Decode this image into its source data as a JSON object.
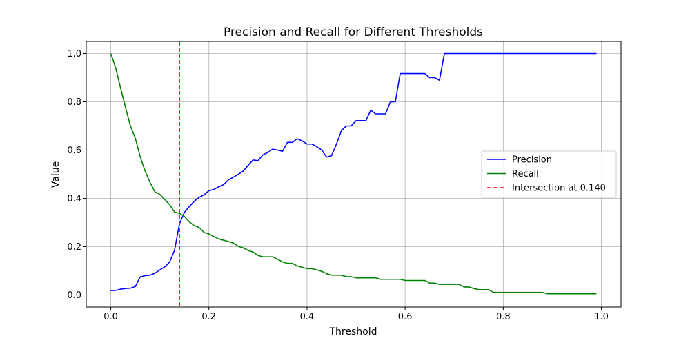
{
  "chart_data": {
    "type": "line",
    "title": "Precision and Recall for Different Thresholds",
    "xlabel": "Threshold",
    "ylabel": "Value",
    "xlim": [
      -0.05,
      1.04
    ],
    "ylim": [
      -0.05,
      1.05
    ],
    "xticks": [
      0.0,
      0.2,
      0.4,
      0.6,
      0.8,
      1.0
    ],
    "xtick_labels": [
      "0.0",
      "0.2",
      "0.4",
      "0.6",
      "0.8",
      "1.0"
    ],
    "yticks": [
      0.0,
      0.2,
      0.4,
      0.6,
      0.8,
      1.0
    ],
    "ytick_labels": [
      "0.0",
      "0.2",
      "0.4",
      "0.6",
      "0.8",
      "1.0"
    ],
    "grid": true,
    "legend_position": "center-right",
    "x": [
      0.0,
      0.01,
      0.02,
      0.03,
      0.04,
      0.05,
      0.06,
      0.07,
      0.08,
      0.09,
      0.1,
      0.11,
      0.12,
      0.13,
      0.14,
      0.15,
      0.16,
      0.17,
      0.18,
      0.19,
      0.2,
      0.21,
      0.22,
      0.23,
      0.24,
      0.25,
      0.26,
      0.27,
      0.28,
      0.29,
      0.3,
      0.31,
      0.32,
      0.33,
      0.34,
      0.35,
      0.36,
      0.37,
      0.38,
      0.39,
      0.4,
      0.41,
      0.42,
      0.43,
      0.44,
      0.45,
      0.46,
      0.47,
      0.48,
      0.49,
      0.5,
      0.51,
      0.52,
      0.53,
      0.54,
      0.55,
      0.56,
      0.57,
      0.58,
      0.59,
      0.6,
      0.61,
      0.62,
      0.63,
      0.64,
      0.65,
      0.66,
      0.67,
      0.68,
      0.69,
      0.7,
      0.71,
      0.72,
      0.73,
      0.74,
      0.75,
      0.76,
      0.77,
      0.78,
      0.79,
      0.8,
      0.81,
      0.82,
      0.83,
      0.84,
      0.85,
      0.86,
      0.87,
      0.88,
      0.89,
      0.9,
      0.91,
      0.92,
      0.93,
      0.94,
      0.95,
      0.96,
      0.97,
      0.98,
      0.99
    ],
    "series": [
      {
        "name": "Precision",
        "color": "#0000ff",
        "style": "solid",
        "values": [
          0.018,
          0.019,
          0.024,
          0.027,
          0.028,
          0.035,
          0.075,
          0.08,
          0.082,
          0.09,
          0.104,
          0.116,
          0.137,
          0.185,
          0.295,
          0.342,
          0.366,
          0.388,
          0.404,
          0.415,
          0.432,
          0.437,
          0.448,
          0.457,
          0.477,
          0.488,
          0.5,
          0.513,
          0.537,
          0.559,
          0.556,
          0.58,
          0.59,
          0.604,
          0.6,
          0.595,
          0.632,
          0.632,
          0.647,
          0.638,
          0.625,
          0.625,
          0.614,
          0.6,
          0.571,
          0.577,
          0.625,
          0.68,
          0.7,
          0.7,
          0.722,
          0.722,
          0.722,
          0.765,
          0.75,
          0.75,
          0.75,
          0.8,
          0.8,
          0.917,
          0.917,
          0.917,
          0.917,
          0.917,
          0.917,
          0.9,
          0.9,
          0.889,
          1.0,
          1.0,
          1.0,
          1.0,
          1.0,
          1.0,
          1.0,
          1.0,
          1.0,
          1.0,
          1.0,
          1.0,
          1.0,
          1.0,
          1.0,
          1.0,
          1.0,
          1.0,
          1.0,
          1.0,
          1.0,
          1.0,
          1.0,
          1.0,
          1.0,
          1.0,
          1.0,
          1.0,
          1.0,
          1.0,
          1.0,
          1.0
        ]
      },
      {
        "name": "Recall",
        "color": "#008000",
        "style": "solid",
        "values": [
          1.0,
          0.94,
          0.857,
          0.777,
          0.7,
          0.649,
          0.572,
          0.513,
          0.466,
          0.427,
          0.417,
          0.395,
          0.374,
          0.343,
          0.338,
          0.325,
          0.303,
          0.287,
          0.28,
          0.259,
          0.253,
          0.242,
          0.232,
          0.227,
          0.221,
          0.215,
          0.201,
          0.195,
          0.184,
          0.178,
          0.164,
          0.158,
          0.158,
          0.158,
          0.148,
          0.137,
          0.131,
          0.131,
          0.12,
          0.115,
          0.109,
          0.109,
          0.104,
          0.098,
          0.088,
          0.082,
          0.082,
          0.082,
          0.076,
          0.076,
          0.071,
          0.071,
          0.071,
          0.071,
          0.071,
          0.065,
          0.065,
          0.065,
          0.065,
          0.065,
          0.06,
          0.06,
          0.06,
          0.06,
          0.06,
          0.049,
          0.049,
          0.044,
          0.044,
          0.044,
          0.044,
          0.044,
          0.033,
          0.033,
          0.027,
          0.022,
          0.022,
          0.022,
          0.011,
          0.011,
          0.011,
          0.011,
          0.011,
          0.011,
          0.011,
          0.011,
          0.011,
          0.011,
          0.011,
          0.005,
          0.005,
          0.005,
          0.005,
          0.005,
          0.005,
          0.005,
          0.005,
          0.005,
          0.005,
          0.005
        ]
      }
    ],
    "vline": {
      "name": "Intersection at 0.140",
      "x": 0.14,
      "color": "#ff0000",
      "style": "dashed"
    },
    "legend": [
      "Precision",
      "Recall",
      "Intersection at 0.140"
    ]
  }
}
